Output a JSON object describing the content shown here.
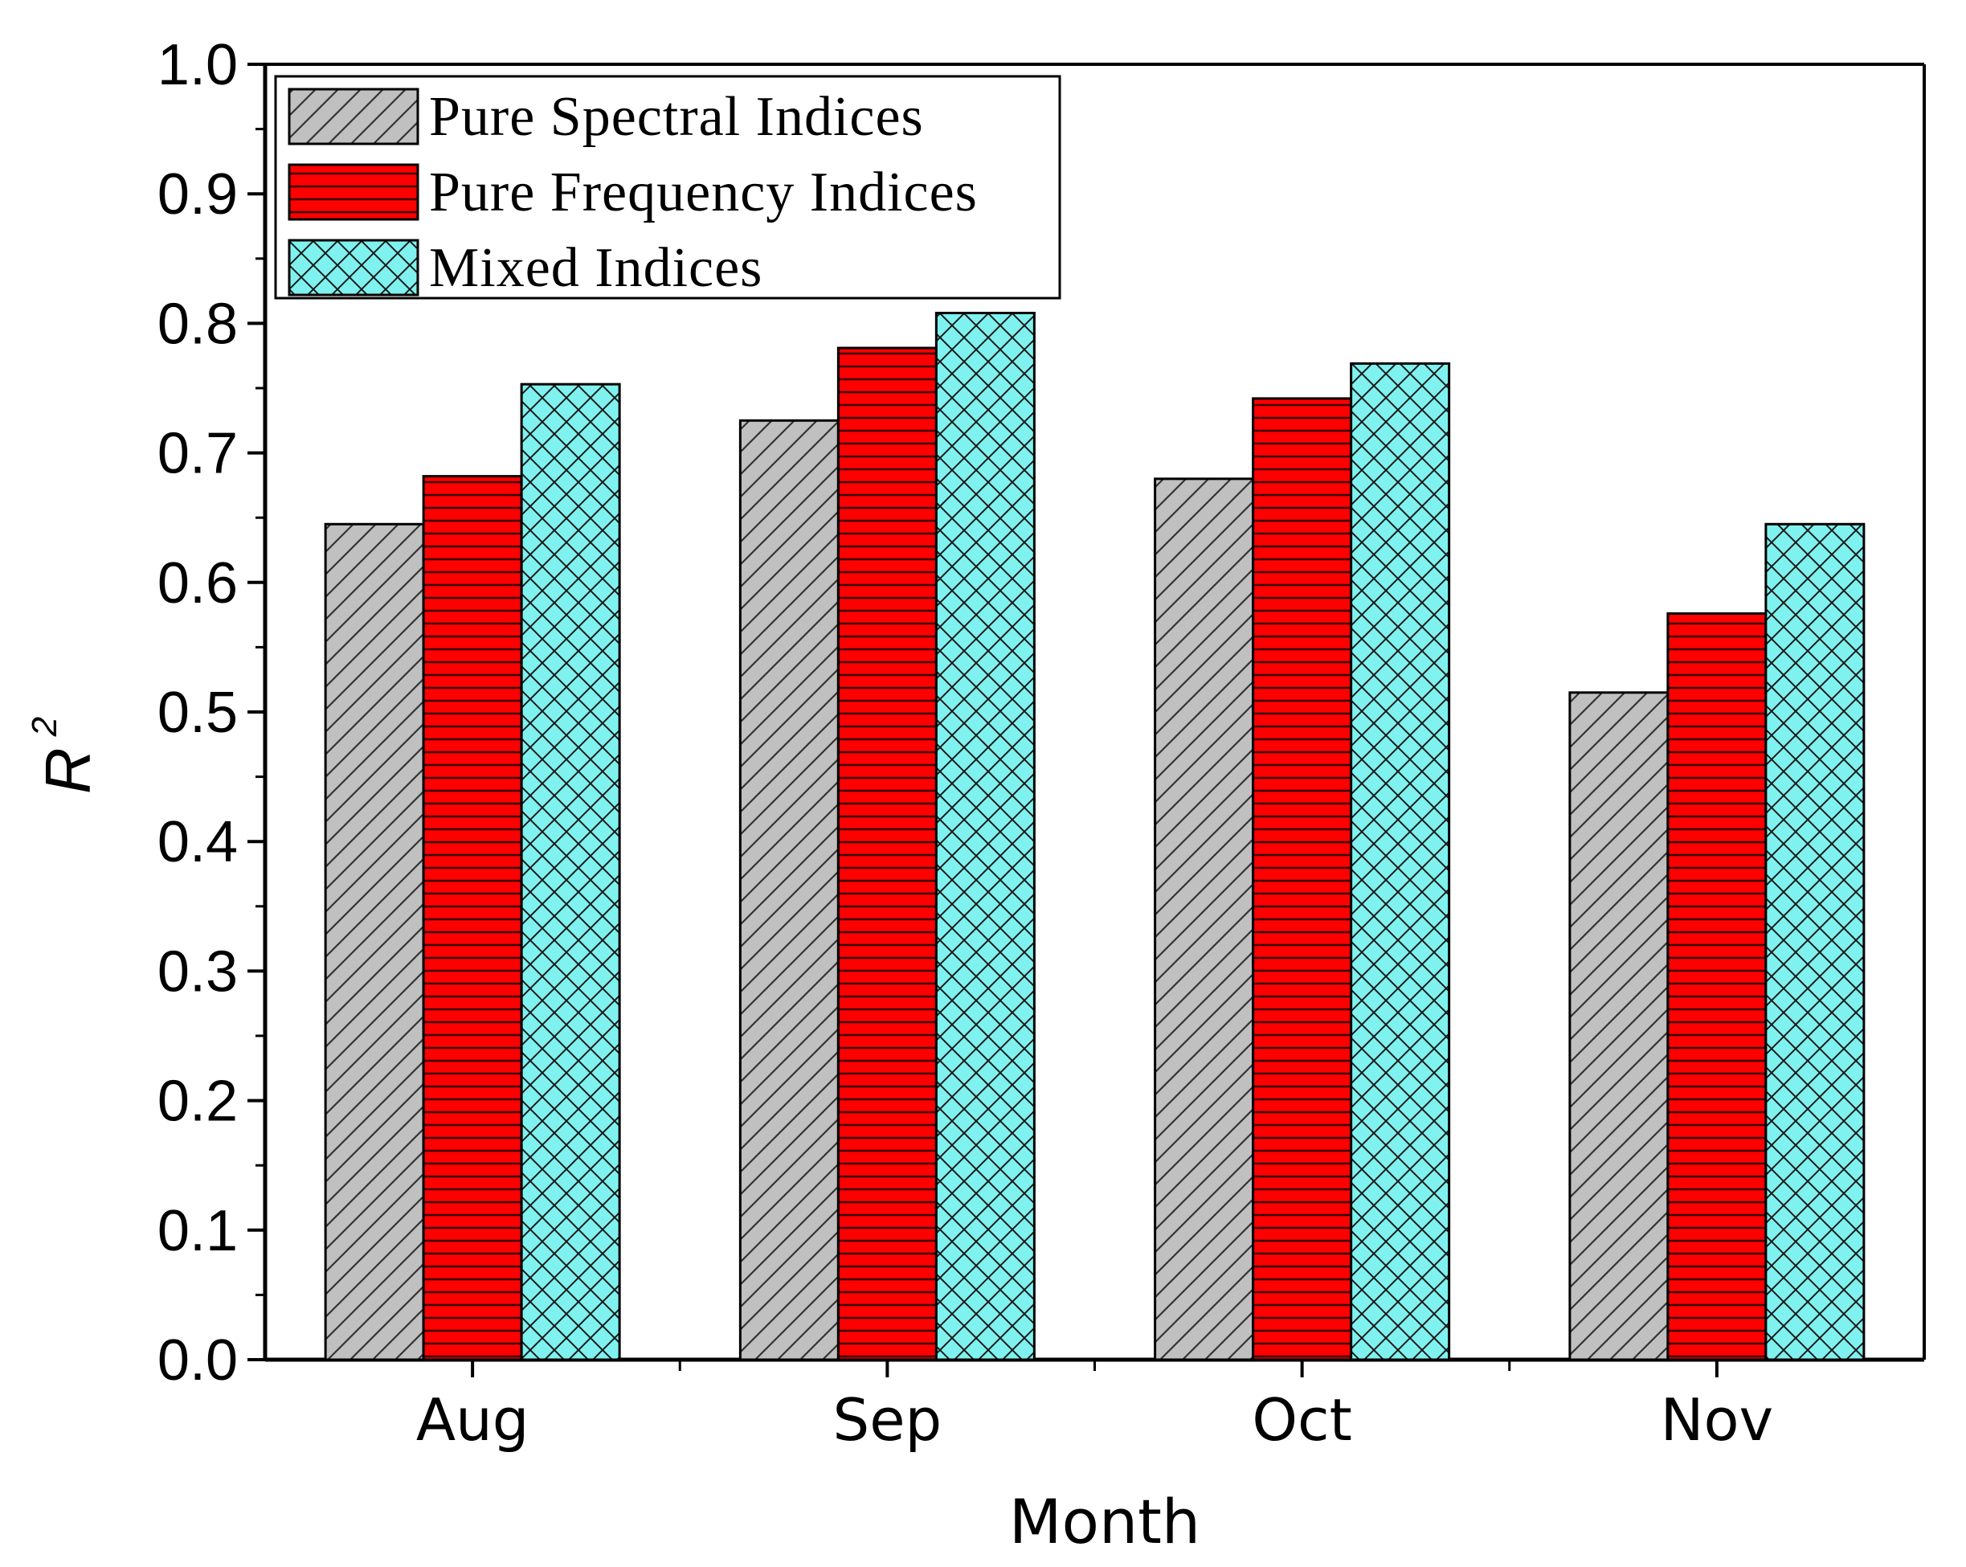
{
  "chart_data": {
    "type": "bar",
    "title": "",
    "xlabel": "Month",
    "ylabel": "R",
    "ylabel_superscript": "2",
    "categories": [
      "Aug",
      "Sep",
      "Oct",
      "Nov"
    ],
    "ylim": [
      0,
      1.0
    ],
    "yticks": [
      "0.0",
      "0.1",
      "0.2",
      "0.3",
      "0.4",
      "0.5",
      "0.6",
      "0.7",
      "0.8",
      "0.9",
      "1.0"
    ],
    "grid": false,
    "legend_position": "top-left",
    "series": [
      {
        "name": "Pure Spectral Indices",
        "values": [
          0.645,
          0.725,
          0.68,
          0.515
        ],
        "color": "#c0c0c0",
        "pattern": "diagonal-hatch"
      },
      {
        "name": "Pure Frequency Indices",
        "values": [
          0.682,
          0.781,
          0.742,
          0.576
        ],
        "color": "#ff0000",
        "pattern": "horizontal-lines"
      },
      {
        "name": "Mixed Indices",
        "values": [
          0.753,
          0.808,
          0.769,
          0.645
        ],
        "color": "#7ff2ef",
        "pattern": "crosshatch"
      }
    ]
  }
}
